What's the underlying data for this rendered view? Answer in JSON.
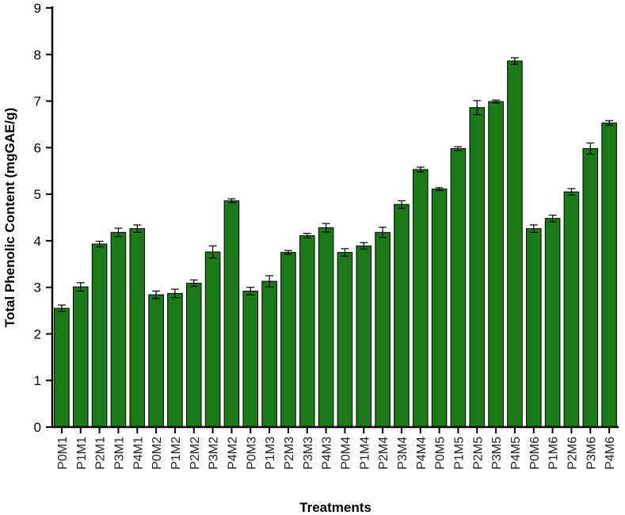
{
  "chart_data": {
    "type": "bar",
    "xlabel": "Treatments",
    "ylabel": "Total Phenolic Content (mgGAE/g)",
    "ylim": [
      0,
      9
    ],
    "yticks": [
      0,
      1,
      2,
      3,
      4,
      5,
      6,
      7,
      8,
      9
    ],
    "grid": false,
    "legend": "none",
    "bar_color": "#1a7a17",
    "categories": [
      "P0M1",
      "P1M1",
      "P2M1",
      "P3M1",
      "P4M1",
      "P0M2",
      "P1M2",
      "P2M2",
      "P3M2",
      "P4M2",
      "P0M3",
      "P1M3",
      "P2M3",
      "P3M3",
      "P4M3",
      "P0M4",
      "P1M4",
      "P2M4",
      "P3M4",
      "P4M4",
      "P0M5",
      "P1M5",
      "P2M5",
      "P3M5",
      "P4M5",
      "P0M6",
      "P1M6",
      "P2M6",
      "P3M6",
      "P4M6"
    ],
    "values": [
      2.55,
      3.01,
      3.93,
      4.18,
      4.26,
      2.84,
      2.87,
      3.09,
      3.76,
      4.86,
      2.92,
      3.13,
      3.75,
      4.11,
      4.28,
      3.75,
      3.89,
      4.18,
      4.78,
      5.53,
      5.11,
      5.98,
      6.86,
      6.99,
      7.86,
      4.26,
      4.48,
      5.05,
      5.98,
      6.53
    ],
    "errors": [
      0.07,
      0.09,
      0.06,
      0.09,
      0.08,
      0.08,
      0.09,
      0.07,
      0.13,
      0.04,
      0.08,
      0.12,
      0.04,
      0.05,
      0.09,
      0.08,
      0.07,
      0.11,
      0.08,
      0.05,
      0.03,
      0.04,
      0.15,
      0.03,
      0.07,
      0.08,
      0.07,
      0.07,
      0.12,
      0.05
    ]
  }
}
